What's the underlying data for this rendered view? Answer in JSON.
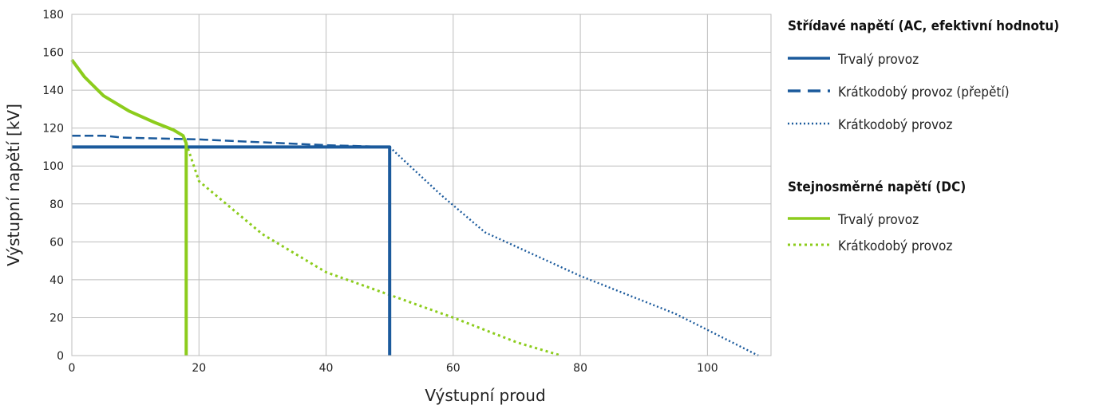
{
  "chart_data": {
    "type": "line",
    "xlabel": "Výstupní proud",
    "ylabel": "Výstupní napětí [kV]",
    "xlim": [
      0,
      110
    ],
    "ylim": [
      0,
      180
    ],
    "xticks": [
      0,
      20,
      40,
      60,
      80,
      100
    ],
    "yticks": [
      0,
      20,
      40,
      60,
      80,
      100,
      120,
      140,
      160,
      180
    ],
    "grid": true,
    "legend_position": "right",
    "legend_groups": [
      {
        "title": "Střídavé napětí (AC, efektivní hodnotu)",
        "entries": [
          "AC Trvalý provoz",
          "AC Krátkodobý provoz (přepětí)",
          "AC Krátkodobý provoz"
        ]
      },
      {
        "title": "Stejnosměrné napětí (DC)",
        "entries": [
          "DC Trvalý provoz",
          "DC Krátkodobý provoz"
        ]
      }
    ],
    "series": [
      {
        "id": "AC Trvalý provoz",
        "name": "Trvalý provoz",
        "color": "#1b5a9c",
        "style": "solid",
        "x": [
          0,
          50,
          50
        ],
        "y": [
          110,
          110,
          0
        ]
      },
      {
        "id": "AC Krátkodobý provoz (přepětí)",
        "name": "Krátkodobý provoz (přepětí)",
        "color": "#1b5a9c",
        "style": "dashed",
        "x": [
          0,
          5,
          8,
          20,
          40,
          50
        ],
        "y": [
          116,
          116,
          115,
          114,
          111,
          110
        ]
      },
      {
        "id": "AC Krátkodobý provoz",
        "name": "Krátkodobý provoz",
        "color": "#1b5a9c",
        "style": "dotted",
        "x": [
          50,
          58,
          65,
          80,
          95,
          108
        ],
        "y": [
          110,
          85,
          65,
          42,
          22,
          0
        ]
      },
      {
        "id": "DC Trvalý provoz",
        "name": "Trvalý provoz",
        "color": "#8ccc1c",
        "style": "solid",
        "x": [
          0,
          2,
          5,
          9,
          13,
          16,
          17.5,
          18,
          18
        ],
        "y": [
          156,
          147,
          137,
          129,
          123,
          119,
          116,
          112,
          0
        ]
      },
      {
        "id": "DC Krátkodobý provoz",
        "name": "Krátkodobý provoz",
        "color": "#8ccc1c",
        "style": "dotted",
        "x": [
          18,
          20,
          30,
          40,
          50,
          60,
          70,
          77
        ],
        "y": [
          112,
          92,
          64,
          44,
          32,
          20,
          7,
          0
        ]
      }
    ]
  }
}
